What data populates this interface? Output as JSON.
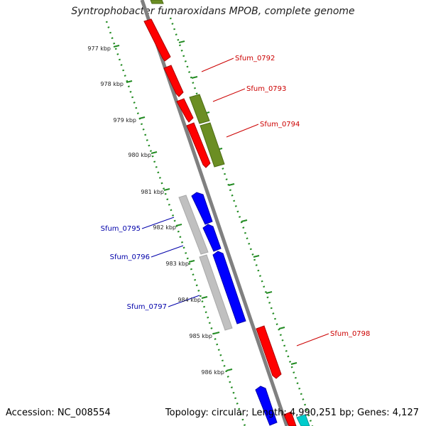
{
  "title": "Syntrophobacter fumaroxidans MPOB, complete genome",
  "footer": {
    "accession": "Accession: NC_008554",
    "topology": "Topology: circular; Length: 4,990,251 bp; Genes: 4,127"
  },
  "ruler_labels": [
    "977 kbp",
    "978 kbp",
    "979 kbp",
    "980 kbp",
    "981 kbp",
    "982 kbp",
    "983 kbp",
    "984 kbp",
    "985 kbp",
    "986 kbp"
  ],
  "genes": {
    "forward": [
      "Sfum_0792",
      "Sfum_0793",
      "Sfum_0794",
      "Sfum_0798"
    ],
    "reverse": [
      "Sfum_0795",
      "Sfum_0796",
      "Sfum_0797"
    ]
  },
  "colors": {
    "forward_gene": "#ff0000",
    "reverse_gene": "#0000ff",
    "rna_gene": "#6b8e23",
    "pseudo_gene": "#c0c0c0",
    "other_gene": "#00cccc",
    "backbone": "#808080",
    "ruler": "#228b22",
    "forward_label": "#cc0000",
    "reverse_label": "#0000aa"
  }
}
